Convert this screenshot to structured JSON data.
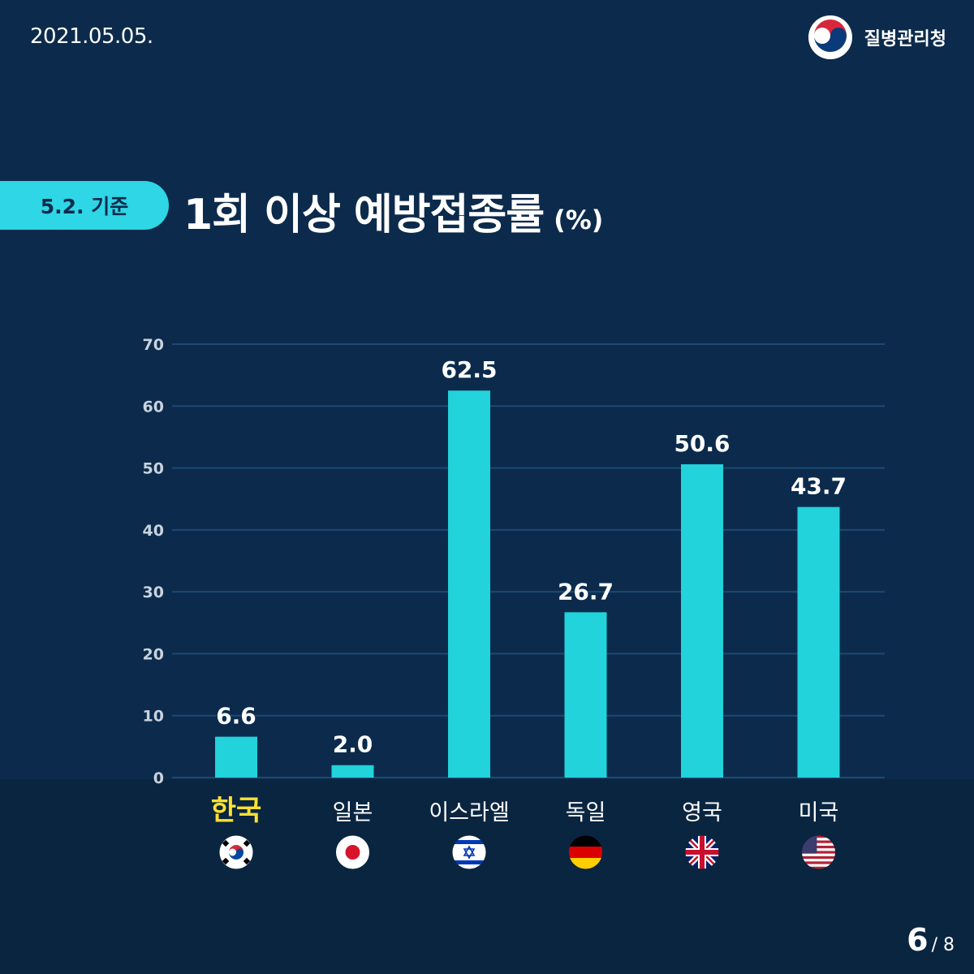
{
  "header": {
    "date": "2021.05.05.",
    "agency": "질병관리청"
  },
  "badge": "5.2. 기준",
  "title": "1회 이상 예방접종률",
  "unit": "(%)",
  "pagination": {
    "current": "6",
    "total": "/ 8"
  },
  "colors": {
    "background": "#0c2b4c",
    "bar": "#22d3db",
    "highlight": "#ffe033",
    "gridline": "#1d4a72"
  },
  "chart_data": {
    "type": "bar",
    "categories": [
      "한국",
      "일본",
      "이스라엘",
      "독일",
      "영국",
      "미국"
    ],
    "values": [
      6.6,
      2.0,
      62.5,
      26.7,
      50.6,
      43.7
    ],
    "value_labels": [
      "6.6",
      "2.0",
      "62.5",
      "26.7",
      "50.6",
      "43.7"
    ],
    "flags": [
      "korea-flag-icon",
      "japan-flag-icon",
      "israel-flag-icon",
      "germany-flag-icon",
      "uk-flag-icon",
      "usa-flag-icon"
    ],
    "highlight_category": "한국",
    "ylim": [
      0,
      70
    ],
    "yticks": [
      0,
      10,
      20,
      30,
      40,
      50,
      60,
      70
    ],
    "grid": true
  }
}
